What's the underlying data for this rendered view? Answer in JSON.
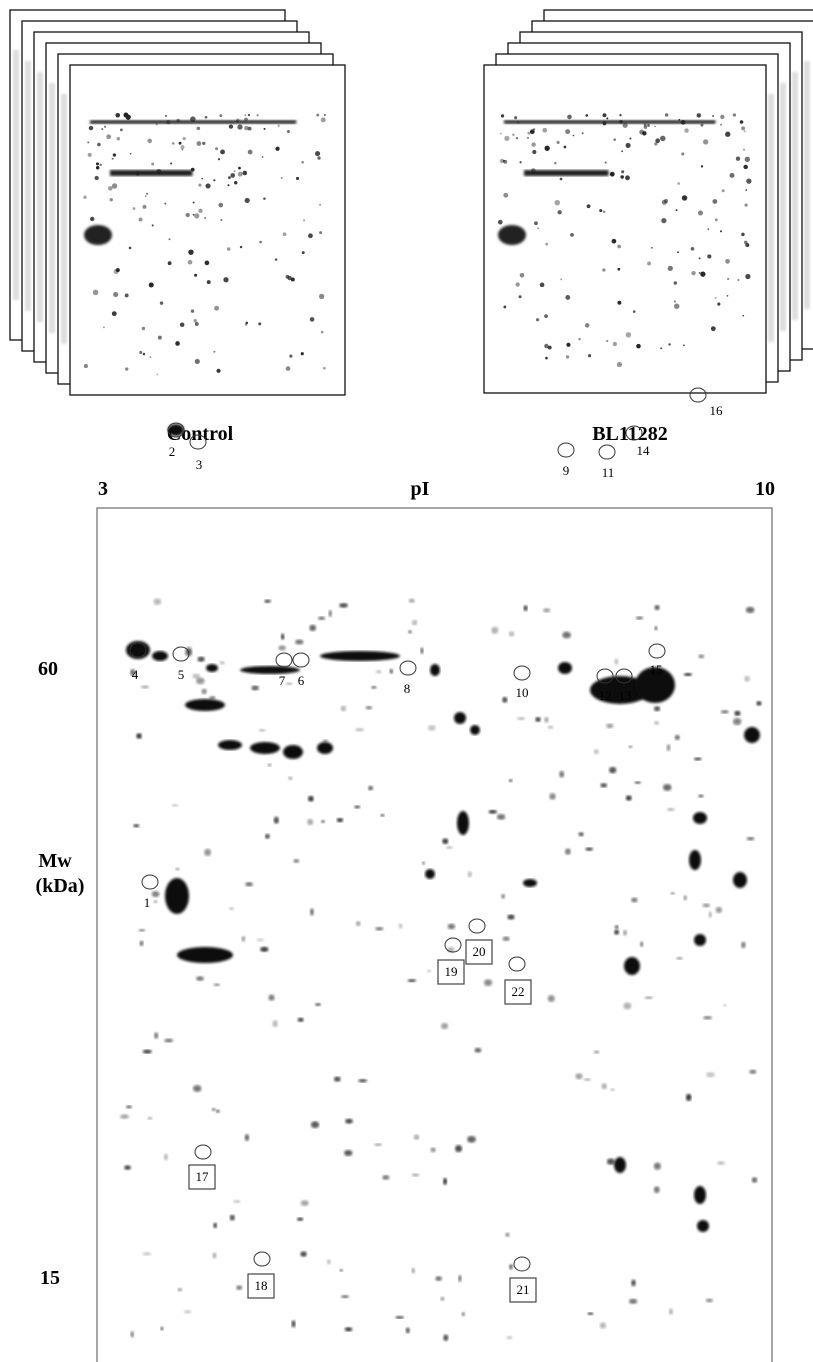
{
  "panels": [
    {
      "label": "Control"
    },
    {
      "label": "BL11282"
    }
  ],
  "gel": {
    "pi_axis": {
      "label": "pI",
      "start": "3",
      "end": "10"
    },
    "mw_axis": {
      "label_lines": [
        "Mw",
        "(kDa)"
      ],
      "marks": [
        "60",
        "15"
      ]
    },
    "spots": [
      "1",
      "2",
      "3",
      "4",
      "5",
      "6",
      "7",
      "8",
      "9",
      "10",
      "11",
      "12",
      "13",
      "14",
      "15",
      "16",
      "17",
      "18",
      "19",
      "20",
      "21",
      "22"
    ]
  }
}
